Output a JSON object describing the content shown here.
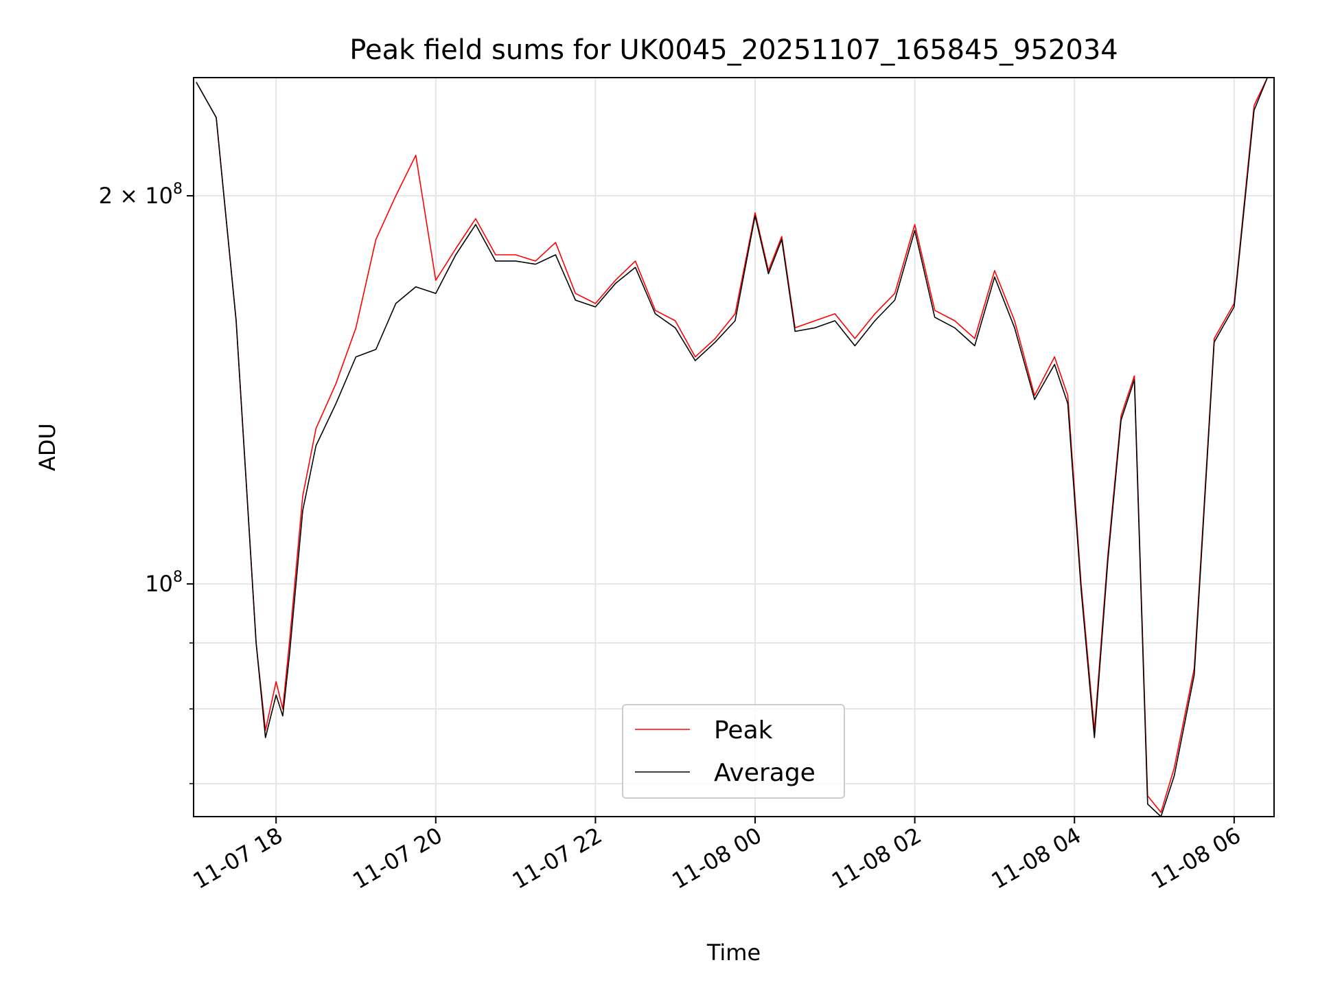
{
  "chart_data": {
    "type": "line",
    "title": "Peak field sums for UK0045_20251107_165845_952034",
    "xlabel": "Time",
    "ylabel": "ADU",
    "yscale": "log",
    "ylim": [
      66000000,
      247000000
    ],
    "xlim": [
      "2025-11-07 16:58",
      "2025-11-08 06:30"
    ],
    "x_ticks": [
      {
        "t": "2025-11-07 18:00",
        "label": "11-07 18"
      },
      {
        "t": "2025-11-07 20:00",
        "label": "11-07 20"
      },
      {
        "t": "2025-11-07 22:00",
        "label": "11-07 22"
      },
      {
        "t": "2025-11-08 00:00",
        "label": "11-08 00"
      },
      {
        "t": "2025-11-08 02:00",
        "label": "11-08 02"
      },
      {
        "t": "2025-11-08 04:00",
        "label": "11-08 04"
      },
      {
        "t": "2025-11-08 06:00",
        "label": "11-08 06"
      }
    ],
    "y_major_ticks": [
      {
        "v": 100000000,
        "mantissa": "",
        "exp": "8"
      },
      {
        "v": 200000000,
        "mantissa": "2 × ",
        "exp": "8"
      }
    ],
    "y_minor_ticks": [
      70000000,
      80000000,
      90000000
    ],
    "tick_base": "10",
    "grid": true,
    "legend_position": "lower center",
    "series": [
      {
        "name": "Peak",
        "color": "#ff0000",
        "x": [
          "2025-11-07 17:00",
          "2025-11-07 17:15",
          "2025-11-07 17:30",
          "2025-11-07 17:38",
          "2025-11-07 17:45",
          "2025-11-07 17:52",
          "2025-11-07 18:00",
          "2025-11-07 18:05",
          "2025-11-07 18:10",
          "2025-11-07 18:20",
          "2025-11-07 18:30",
          "2025-11-07 18:45",
          "2025-11-07 19:00",
          "2025-11-07 19:15",
          "2025-11-07 19:30",
          "2025-11-07 19:45",
          "2025-11-07 20:00",
          "2025-11-07 20:15",
          "2025-11-07 20:30",
          "2025-11-07 20:45",
          "2025-11-07 21:00",
          "2025-11-07 21:15",
          "2025-11-07 21:30",
          "2025-11-07 21:45",
          "2025-11-07 22:00",
          "2025-11-07 22:15",
          "2025-11-07 22:30",
          "2025-11-07 22:45",
          "2025-11-07 23:00",
          "2025-11-07 23:15",
          "2025-11-07 23:30",
          "2025-11-07 23:45",
          "2025-11-08 00:00",
          "2025-11-08 00:10",
          "2025-11-08 00:20",
          "2025-11-08 00:30",
          "2025-11-08 00:45",
          "2025-11-08 01:00",
          "2025-11-08 01:15",
          "2025-11-08 01:30",
          "2025-11-08 01:45",
          "2025-11-08 02:00",
          "2025-11-08 02:15",
          "2025-11-08 02:30",
          "2025-11-08 02:45",
          "2025-11-08 03:00",
          "2025-11-08 03:15",
          "2025-11-08 03:30",
          "2025-11-08 03:45",
          "2025-11-08 03:55",
          "2025-11-08 04:05",
          "2025-11-08 04:15",
          "2025-11-08 04:25",
          "2025-11-08 04:35",
          "2025-11-08 04:45",
          "2025-11-08 04:55",
          "2025-11-08 05:05",
          "2025-11-08 05:15",
          "2025-11-08 05:30",
          "2025-11-08 05:45",
          "2025-11-08 06:00",
          "2025-11-08 06:15",
          "2025-11-08 06:25"
        ],
        "y": [
          245000000,
          230000000,
          160000000,
          118000000,
          90000000,
          77000000,
          84000000,
          80000000,
          90000000,
          117000000,
          132000000,
          143000000,
          158000000,
          185000000,
          200000000,
          215000000,
          172000000,
          182000000,
          192000000,
          180000000,
          180000000,
          178000000,
          184000000,
          168000000,
          165000000,
          172000000,
          178000000,
          163000000,
          160000000,
          150000000,
          155000000,
          162000000,
          194000000,
          175000000,
          186000000,
          158000000,
          160000000,
          162000000,
          155000000,
          162000000,
          168000000,
          190000000,
          163000000,
          160000000,
          155000000,
          175000000,
          160000000,
          140000000,
          150000000,
          140000000,
          100000000,
          77000000,
          105000000,
          135000000,
          145000000,
          68500000,
          66500000,
          72000000,
          86000000,
          155000000,
          165000000,
          235000000,
          247000000
        ]
      },
      {
        "name": "Average",
        "color": "#000000",
        "x": [
          "2025-11-07 17:00",
          "2025-11-07 17:15",
          "2025-11-07 17:30",
          "2025-11-07 17:38",
          "2025-11-07 17:45",
          "2025-11-07 17:52",
          "2025-11-07 18:00",
          "2025-11-07 18:05",
          "2025-11-07 18:10",
          "2025-11-07 18:20",
          "2025-11-07 18:30",
          "2025-11-07 18:45",
          "2025-11-07 19:00",
          "2025-11-07 19:15",
          "2025-11-07 19:30",
          "2025-11-07 19:45",
          "2025-11-07 20:00",
          "2025-11-07 20:15",
          "2025-11-07 20:30",
          "2025-11-07 20:45",
          "2025-11-07 21:00",
          "2025-11-07 21:15",
          "2025-11-07 21:30",
          "2025-11-07 21:45",
          "2025-11-07 22:00",
          "2025-11-07 22:15",
          "2025-11-07 22:30",
          "2025-11-07 22:45",
          "2025-11-07 23:00",
          "2025-11-07 23:15",
          "2025-11-07 23:30",
          "2025-11-07 23:45",
          "2025-11-08 00:00",
          "2025-11-08 00:10",
          "2025-11-08 00:20",
          "2025-11-08 00:30",
          "2025-11-08 00:45",
          "2025-11-08 01:00",
          "2025-11-08 01:15",
          "2025-11-08 01:30",
          "2025-11-08 01:45",
          "2025-11-08 02:00",
          "2025-11-08 02:15",
          "2025-11-08 02:30",
          "2025-11-08 02:45",
          "2025-11-08 03:00",
          "2025-11-08 03:15",
          "2025-11-08 03:30",
          "2025-11-08 03:45",
          "2025-11-08 03:55",
          "2025-11-08 04:05",
          "2025-11-08 04:15",
          "2025-11-08 04:25",
          "2025-11-08 04:35",
          "2025-11-08 04:45",
          "2025-11-08 04:55",
          "2025-11-08 05:05",
          "2025-11-08 05:15",
          "2025-11-08 05:30",
          "2025-11-08 05:45",
          "2025-11-08 06:00",
          "2025-11-08 06:15",
          "2025-11-08 06:25"
        ],
        "y": [
          245000000,
          230000000,
          160000000,
          118000000,
          90000000,
          76000000,
          82000000,
          79000000,
          88000000,
          114000000,
          128000000,
          138000000,
          150000000,
          152000000,
          165000000,
          170000000,
          168000000,
          180000000,
          190000000,
          178000000,
          178000000,
          177000000,
          180000000,
          166000000,
          164000000,
          171000000,
          176000000,
          162000000,
          158000000,
          149000000,
          154000000,
          160000000,
          193000000,
          174000000,
          185000000,
          157000000,
          158000000,
          160000000,
          153000000,
          160000000,
          166000000,
          188000000,
          161000000,
          158000000,
          153000000,
          173000000,
          158000000,
          139000000,
          148000000,
          138000000,
          99000000,
          76000000,
          104000000,
          134000000,
          144000000,
          67500000,
          66000000,
          71000000,
          85000000,
          154000000,
          164000000,
          233000000,
          247000000
        ]
      }
    ]
  }
}
